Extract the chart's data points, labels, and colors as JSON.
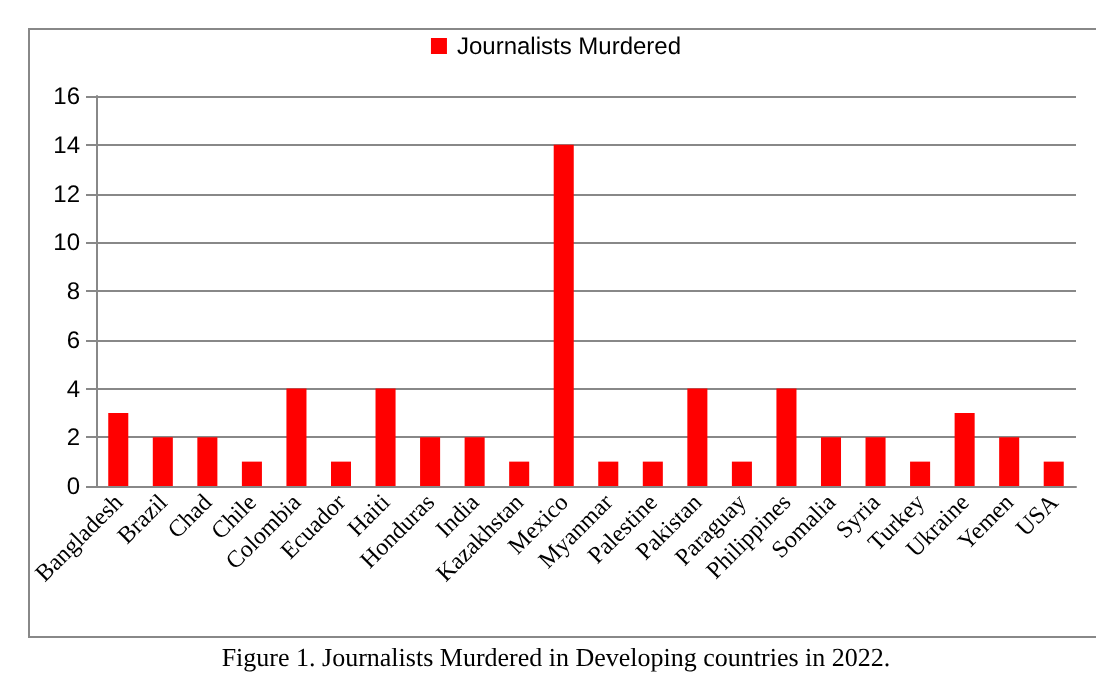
{
  "chart_data": {
    "type": "bar",
    "categories": [
      "Bangladesh",
      "Brazil",
      "Chad",
      "Chile",
      "Colombia",
      "Ecuador",
      "Haiti",
      "Honduras",
      "India",
      "Kazakhstan",
      "Mexico",
      "Myanmar",
      "Palestine",
      "Pakistan",
      "Paraguay",
      "Philippines",
      "Somalia",
      "Syria",
      "Turkey",
      "Ukraine",
      "Yemen",
      "USA"
    ],
    "series": [
      {
        "name": "Journalists Murdered",
        "color": "#ff0000",
        "values": [
          3,
          2,
          2,
          1,
          4,
          1,
          4,
          2,
          2,
          1,
          14,
          1,
          1,
          4,
          1,
          4,
          2,
          2,
          1,
          3,
          2,
          1
        ]
      }
    ],
    "ylim": [
      0,
      16
    ],
    "yticks": [
      0,
      2,
      4,
      6,
      8,
      10,
      12,
      14,
      16
    ],
    "grid": "y",
    "legend": "top",
    "annotations": [
      "Figure 1. Journalists Murdered in Developing countries in 2022."
    ]
  }
}
